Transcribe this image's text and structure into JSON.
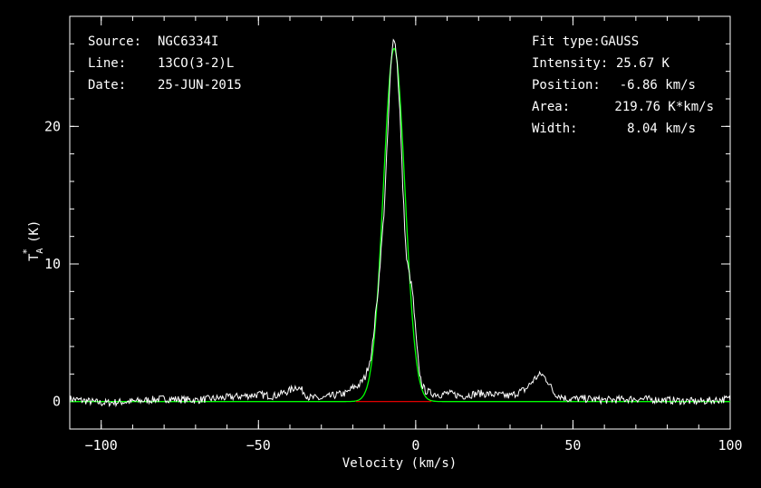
{
  "header_left": [
    {
      "key": "Source:",
      "value": "NGC6334I"
    },
    {
      "key": "Line:",
      "value": "13CO(3-2)L"
    },
    {
      "key": "Date:",
      "value": "25-JUN-2015"
    }
  ],
  "header_right": [
    {
      "key": "Fit type:",
      "value": "GAUSS"
    },
    {
      "key": "Intensity:",
      "value": "25.67 K"
    },
    {
      "key": "Position:",
      "value": "-6.86 km/s"
    },
    {
      "key": "Area:",
      "value": "219.76 K*km/s"
    },
    {
      "key": "Width:",
      "value": "8.04 km/s"
    }
  ],
  "colors": {
    "background": "#000000",
    "data": "#ffffff",
    "fit": "#00ff00",
    "baseline": "#ff0000",
    "axes": "#ffffff"
  },
  "chart_data": {
    "type": "line",
    "xlabel": "Velocity (km/s)",
    "ylabel_main": "T",
    "ylabel_sup": "*",
    "ylabel_sub": "A",
    "ylabel_unit": "(K)",
    "xlim": [
      -110,
      100
    ],
    "ylim": [
      -2,
      28
    ],
    "x_ticks": [
      -100,
      -50,
      0,
      50,
      100
    ],
    "x_tick_labels": [
      "−100",
      "−50",
      "0",
      "50",
      "100"
    ],
    "y_ticks": [
      0,
      10,
      20
    ],
    "y_tick_labels": [
      "0",
      "10",
      "20"
    ],
    "x_minor_step": 10,
    "y_minor_step": 2,
    "grid": false,
    "series": [
      {
        "role": "observed spectrum",
        "x": [
          -110,
          -100,
          -90,
          -80,
          -70,
          -60,
          -50,
          -45,
          -40,
          -38,
          -36,
          -34,
          -30,
          -25,
          -22,
          -20,
          -18,
          -16,
          -14,
          -12,
          -10,
          -9,
          -8,
          -7,
          -6,
          -5,
          -4,
          -3,
          -2,
          -1,
          0,
          1,
          2,
          3,
          5,
          8,
          10,
          15,
          20,
          25,
          30,
          35,
          38,
          40,
          42,
          44,
          48,
          55,
          60,
          70,
          80,
          90,
          100
        ],
        "y": [
          0.2,
          -0.1,
          0.0,
          0.2,
          0.1,
          0.3,
          0.5,
          0.4,
          0.8,
          1.1,
          0.8,
          0.3,
          0.2,
          0.5,
          0.6,
          1.0,
          1.2,
          1.8,
          3.5,
          8.0,
          14.0,
          19.0,
          24.0,
          26.8,
          25.0,
          21.0,
          15.0,
          10.5,
          9.2,
          8.0,
          5.0,
          2.4,
          1.2,
          0.8,
          0.6,
          0.5,
          0.6,
          0.4,
          0.6,
          0.5,
          0.4,
          0.9,
          1.7,
          2.0,
          1.5,
          0.6,
          0.2,
          0.2,
          0.1,
          0.2,
          0.1,
          0.0,
          0.2
        ]
      },
      {
        "role": "gaussian fit",
        "peak": 25.67,
        "center": -6.86,
        "fwhm": 8.04
      },
      {
        "role": "fit baseline window",
        "x": [
          -19,
          5
        ],
        "y": [
          0,
          0
        ]
      }
    ]
  }
}
